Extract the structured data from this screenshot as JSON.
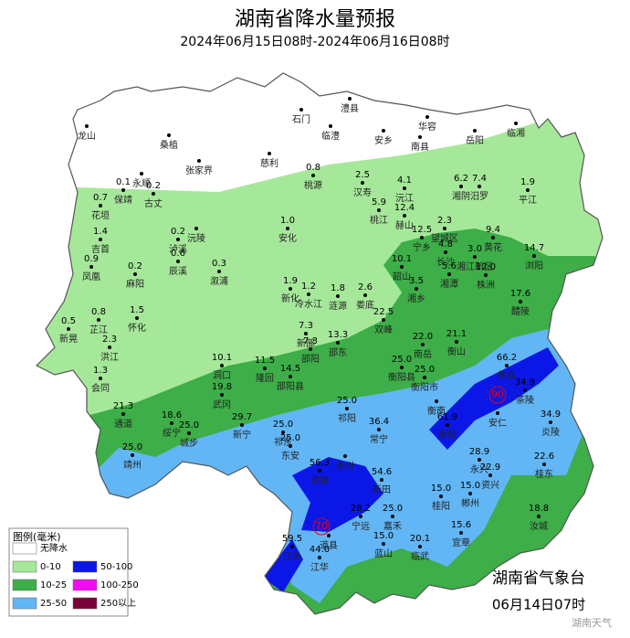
{
  "header": {
    "title": "湖南省降水量预报",
    "subtitle": "2024年06月15日08时-2024年06月16日08时"
  },
  "legend": {
    "title": "图例(毫米)",
    "items": [
      {
        "label": "无降水",
        "color": "#ffffff"
      },
      {
        "label": "0-10",
        "color": "#a6e89a"
      },
      {
        "label": "10-25",
        "color": "#3dae48"
      },
      {
        "label": "25-50",
        "color": "#62b6f5"
      },
      {
        "label": "50-100",
        "color": "#0a17e6"
      },
      {
        "label": "100-250",
        "color": "#f00ef0"
      },
      {
        "label": "250以上",
        "color": "#7a0038"
      }
    ]
  },
  "stations": [
    {
      "name": "龙山"
    },
    {
      "name": "桑植"
    },
    {
      "name": "永顺"
    },
    {
      "name": "张家界"
    },
    {
      "name": "慈利"
    },
    {
      "name": "石门"
    },
    {
      "name": "澧县"
    },
    {
      "name": "临澧"
    },
    {
      "name": "安乡"
    },
    {
      "name": "华容"
    },
    {
      "name": "南县"
    },
    {
      "name": "岳阳"
    },
    {
      "name": "临湘"
    },
    {
      "name": "桃源",
      "value": "0.8"
    },
    {
      "name": "汉寿",
      "value": "2.5"
    },
    {
      "name": "沅江",
      "value": "4.1"
    },
    {
      "name": "汨罗",
      "value": "7.4"
    },
    {
      "name": "湘阴",
      "value": "6.2"
    },
    {
      "name": "平江",
      "value": "1.9"
    },
    {
      "name": "保靖",
      "value": "0.1"
    },
    {
      "name": "古丈",
      "value": "0.2"
    },
    {
      "name": "花垣",
      "value": "0.7"
    },
    {
      "name": "赫山",
      "value": "12.4"
    },
    {
      "name": "桃江",
      "value": "5.9"
    },
    {
      "name": "望城区",
      "value": "2.3"
    },
    {
      "name": "安化",
      "value": "1.0"
    },
    {
      "name": "沅陵"
    },
    {
      "name": "吉首",
      "value": "1.4"
    },
    {
      "name": "泸溪",
      "value": "0.2"
    },
    {
      "name": "辰溪",
      "value": "0.6"
    },
    {
      "name": "凤凰",
      "value": "0.9"
    },
    {
      "name": "麻阳",
      "value": "0.2"
    },
    {
      "name": "溆浦",
      "value": "0.3"
    },
    {
      "name": "宁乡",
      "value": "12.5"
    },
    {
      "name": "浏阳",
      "value": "14.7"
    },
    {
      "name": "长沙",
      "value": "4.8"
    },
    {
      "name": "湘江新区",
      "value": "3.0"
    },
    {
      "name": "黄花",
      "value": "9.4"
    },
    {
      "name": "韶山",
      "value": "10.1"
    },
    {
      "name": "湘潭",
      "value": "5.6"
    },
    {
      "name": "株洲",
      "value": "12.0"
    },
    {
      "name": "湘乡",
      "value": "3.5"
    },
    {
      "name": "新化",
      "value": "1.9"
    },
    {
      "name": "冷水江",
      "value": "1.2"
    },
    {
      "name": "涟源",
      "value": "1.8"
    },
    {
      "name": "娄底",
      "value": "2.6"
    },
    {
      "name": "醴陵",
      "value": "17.6"
    },
    {
      "name": "怀化",
      "value": "1.5"
    },
    {
      "name": "芷江",
      "value": "0.8"
    },
    {
      "name": "新晃",
      "value": "0.5"
    },
    {
      "name": "洪江",
      "value": "2.3"
    },
    {
      "name": "双峰",
      "value": "22.5"
    },
    {
      "name": "新邵",
      "value": "7.3"
    },
    {
      "name": "邵东",
      "value": "13.3"
    },
    {
      "name": "隆回",
      "value": "11.5"
    },
    {
      "name": "邵阳",
      "value": "7.3"
    },
    {
      "name": "邵阳县",
      "value": "14.5"
    },
    {
      "name": "南岳",
      "value": "22.0"
    },
    {
      "name": "衡山",
      "value": "21.1"
    },
    {
      "name": "会同",
      "value": "1.3"
    },
    {
      "name": "洞口",
      "value": "10.1"
    },
    {
      "name": "衡阳县",
      "value": "25.0"
    },
    {
      "name": "衡阳市",
      "value": "25.0"
    },
    {
      "name": "攸县",
      "value": "66.2"
    },
    {
      "name": "武冈",
      "value": "19.8"
    },
    {
      "name": "绥宁",
      "value": "18.6"
    },
    {
      "name": "城步",
      "value": "25.0"
    },
    {
      "name": "通道",
      "value": "21.3"
    },
    {
      "name": "新宁",
      "value": "29.7"
    },
    {
      "name": "祁东",
      "value": "25.0"
    },
    {
      "name": "东安",
      "value": "25.0"
    },
    {
      "name": "祁阳",
      "value": "25.0"
    },
    {
      "name": "常宁",
      "value": "36.4"
    },
    {
      "name": "耒阳",
      "value": "61.9"
    },
    {
      "name": "茶陵",
      "value": "34.9"
    },
    {
      "name": "炎陵",
      "value": "34.9"
    },
    {
      "name": "靖州",
      "value": "25.0"
    },
    {
      "name": "永兴",
      "value": "28.9"
    },
    {
      "name": "资兴",
      "value": "22.9"
    },
    {
      "name": "桂东",
      "value": "22.6"
    },
    {
      "name": "双牌",
      "value": "56.3"
    },
    {
      "name": "新田",
      "value": "54.6"
    },
    {
      "name": "桂阳",
      "value": "15.0"
    },
    {
      "name": "郴州",
      "value": "15.0"
    },
    {
      "name": "宁远",
      "value": "28.2"
    },
    {
      "name": "嘉禾",
      "value": "25.0"
    },
    {
      "name": "宜章",
      "value": "15.6"
    },
    {
      "name": "汝城",
      "value": "18.8"
    },
    {
      "name": "江永",
      "value": "59.5"
    },
    {
      "name": "江华",
      "value": "44.0"
    },
    {
      "name": "临武",
      "value": "20.1"
    },
    {
      "name": "蓝山",
      "value": "15.0"
    },
    {
      "name": "道县"
    },
    {
      "name": "永州"
    },
    {
      "name": "安仁"
    },
    {
      "name": "衡南"
    }
  ],
  "highlights": [
    "90",
    "70"
  ],
  "footer": {
    "agency": "湖南省气象台",
    "issued": "06月14日07时",
    "watermark": "湖南天气"
  }
}
